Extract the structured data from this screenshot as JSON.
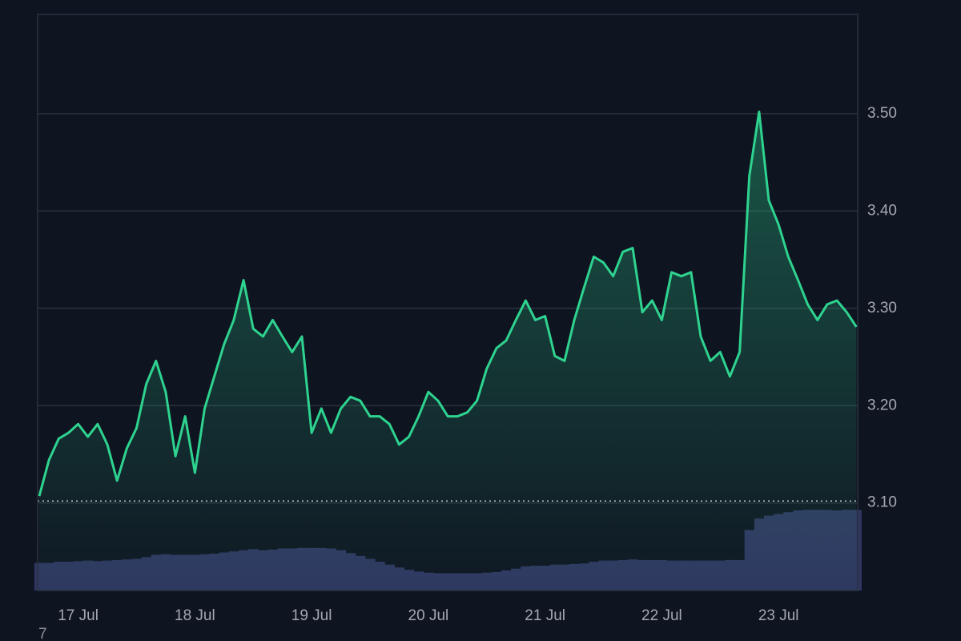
{
  "chart_data": {
    "type": "line",
    "categories": [
      null,
      null,
      null,
      null,
      "17 Jul",
      null,
      null,
      null,
      null,
      null,
      null,
      null,
      null,
      null,
      null,
      null,
      "18 Jul",
      null,
      null,
      null,
      null,
      null,
      null,
      null,
      null,
      null,
      null,
      null,
      "19 Jul",
      null,
      null,
      null,
      null,
      null,
      null,
      null,
      null,
      null,
      null,
      null,
      "20 Jul",
      null,
      null,
      null,
      null,
      null,
      null,
      null,
      null,
      null,
      null,
      null,
      "21 Jul",
      null,
      null,
      null,
      null,
      null,
      null,
      null,
      null,
      null,
      null,
      null,
      "22 Jul",
      null,
      null,
      null,
      null,
      null,
      null,
      null,
      null,
      null,
      null,
      null,
      "23 Jul",
      null,
      null,
      null,
      null,
      null,
      null,
      null,
      null
    ],
    "series": [
      {
        "color": "#2ed38f",
        "values": [
          3.107,
          3.144,
          3.166,
          3.172,
          3.181,
          3.168,
          3.181,
          3.16,
          3.123,
          3.156,
          3.177,
          3.222,
          3.246,
          3.214,
          3.148,
          3.189,
          3.131,
          3.197,
          3.23,
          3.263,
          3.288,
          3.329,
          3.279,
          3.271,
          3.288,
          3.271,
          3.255,
          3.271,
          3.172,
          3.197,
          3.172,
          3.197,
          3.209,
          3.205,
          3.189,
          3.189,
          3.181,
          3.16,
          3.168,
          3.189,
          3.214,
          3.205,
          3.189,
          3.189,
          3.193,
          3.205,
          3.238,
          3.259,
          3.267,
          3.288,
          3.308,
          3.288,
          3.292,
          3.251,
          3.246,
          3.288,
          3.321,
          3.353,
          3.347,
          3.333,
          3.358,
          3.362,
          3.296,
          3.308,
          3.288,
          3.337,
          3.333,
          3.337,
          3.271,
          3.246,
          3.255,
          3.23,
          3.255,
          3.436,
          3.502,
          3.411,
          3.386,
          3.353,
          3.329,
          3.304,
          3.288,
          3.304,
          3.308,
          3.296,
          3.281
        ]
      },
      {
        "color": "#2f3660",
        "axis": "y2",
        "values": [
          4.8,
          4.8,
          5.0,
          5.0,
          5.1,
          5.2,
          5.1,
          5.2,
          5.3,
          5.4,
          5.5,
          5.8,
          6.2,
          6.3,
          6.2,
          6.2,
          6.2,
          6.3,
          6.4,
          6.6,
          6.8,
          7.0,
          7.2,
          7.0,
          7.1,
          7.3,
          7.3,
          7.4,
          7.4,
          7.4,
          7.3,
          7.0,
          6.5,
          6.0,
          5.5,
          5.0,
          4.5,
          4.0,
          3.6,
          3.3,
          3.1,
          3.0,
          3.0,
          3.0,
          3.0,
          3.0,
          3.1,
          3.2,
          3.5,
          3.8,
          4.2,
          4.3,
          4.3,
          4.5,
          4.5,
          4.6,
          4.7,
          5.0,
          5.2,
          5.2,
          5.3,
          5.4,
          5.3,
          5.3,
          5.3,
          5.2,
          5.2,
          5.2,
          5.2,
          5.2,
          5.2,
          5.3,
          5.3,
          10.5,
          12.5,
          13.0,
          13.3,
          13.6,
          13.9,
          14.0,
          14.0,
          14.0,
          13.9,
          14.0,
          14.0
        ]
      }
    ],
    "ylim": [
      3.01,
      3.602
    ],
    "yticks": [
      {
        "value": 3.1,
        "label": "3.10"
      },
      {
        "value": 3.2,
        "label": "3.20"
      },
      {
        "value": 3.3,
        "label": "3.30"
      },
      {
        "value": 3.4,
        "label": "3.40"
      },
      {
        "value": 3.5,
        "label": "3.50"
      }
    ],
    "y2lim": [
      0,
      100
    ],
    "reference_line": 3.102,
    "grid": true,
    "footnote": "7"
  }
}
